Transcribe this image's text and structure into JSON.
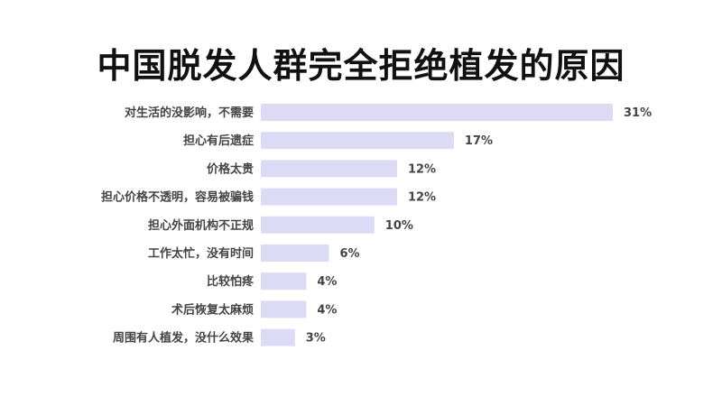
{
  "chart_data": {
    "type": "bar",
    "orientation": "horizontal",
    "title": "中国脱发人群完全拒绝植发的原因",
    "categories": [
      "对生活的没影响，不需要",
      "担心有后遗症",
      "价格太贵",
      "担心价格不透明，容易被骗钱",
      "担心外面机构不正规",
      "工作太忙，没有时间",
      "比较怕疼",
      "术后恢复太麻烦",
      "周围有人植发，没什么效果"
    ],
    "values": [
      31,
      17,
      12,
      12,
      10,
      6,
      4,
      4,
      3
    ],
    "value_labels": [
      "31%",
      "17%",
      "12%",
      "12%",
      "10%",
      "6%",
      "4%",
      "4%",
      "3%"
    ],
    "unit": "%",
    "xlim": [
      0,
      31
    ],
    "grid": false,
    "legend": "none",
    "bar_color": "#dcdaf5"
  }
}
